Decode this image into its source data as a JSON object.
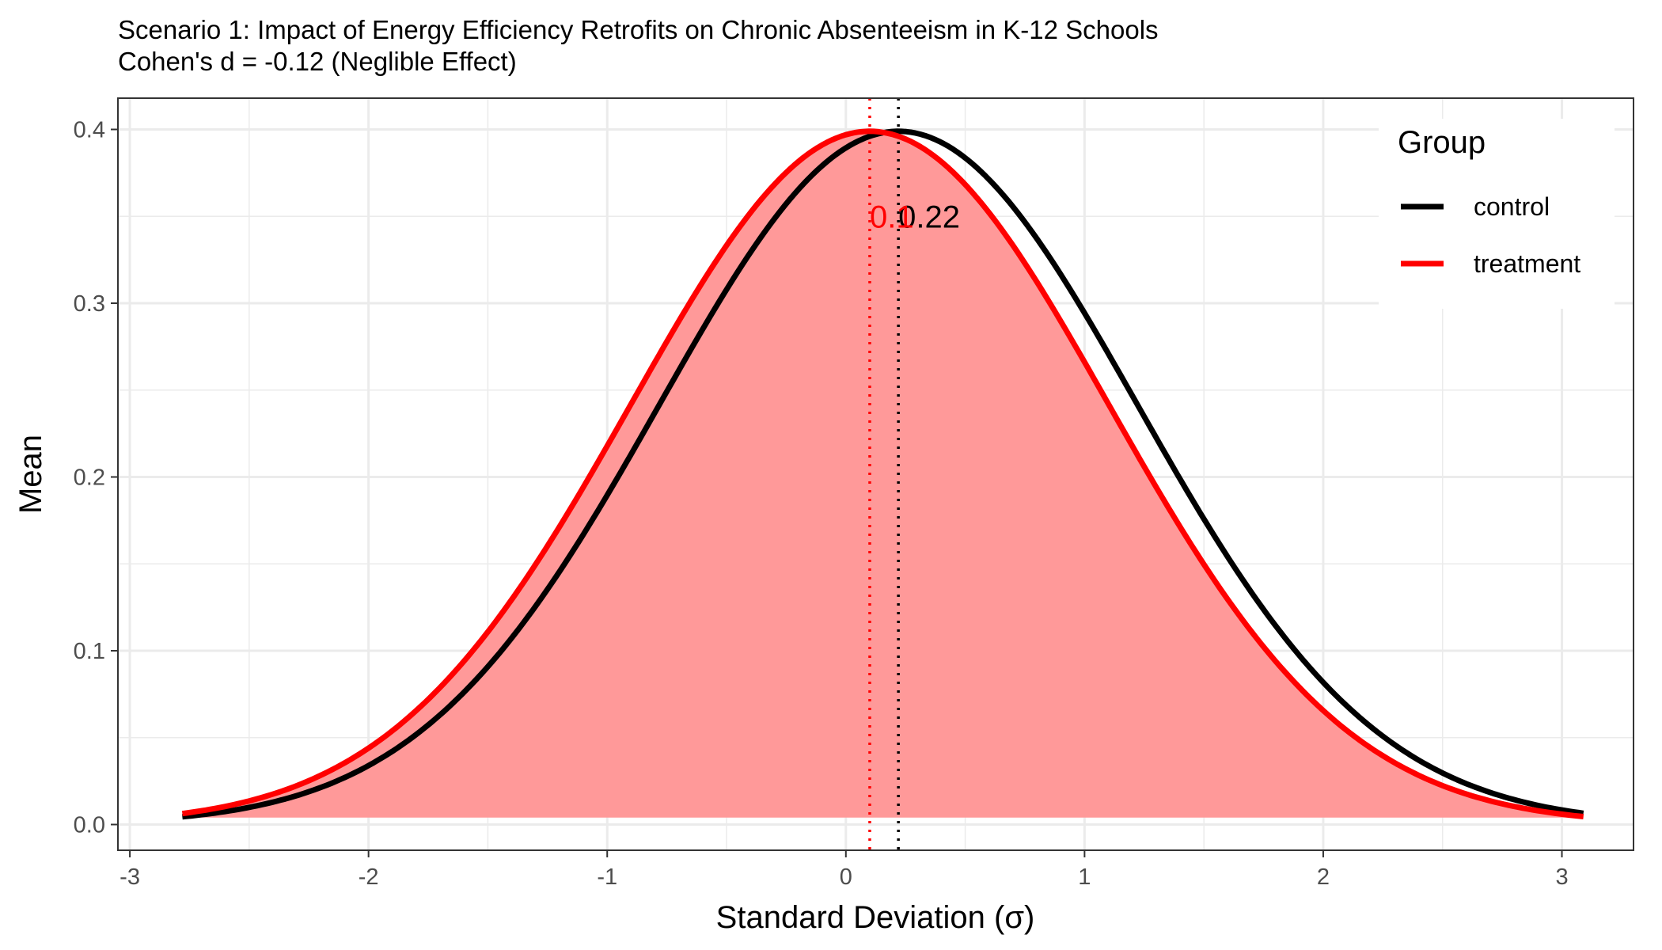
{
  "chart_data": {
    "type": "line",
    "title": "Scenario 1: Impact of Energy Efficiency Retrofits on Chronic Absenteeism in K-12 Schools",
    "subtitle": "Cohen's d = -0.12 (Neglible Effect)",
    "xlabel": "Standard Deviation (σ)",
    "ylabel": "Mean",
    "xlim": [
      -3.05,
      3.3
    ],
    "ylim": [
      -0.0148,
      0.418
    ],
    "x_ticks": [
      -3,
      -2,
      -1,
      0,
      1,
      2,
      3
    ],
    "x_tick_labels": [
      "-3",
      "-2",
      "-1",
      "0",
      "1",
      "2",
      "3"
    ],
    "y_ticks": [
      0.0,
      0.1,
      0.2,
      0.3,
      0.4
    ],
    "y_tick_labels": [
      "0.0",
      "0.1",
      "0.2",
      "0.3",
      "0.4"
    ],
    "grid": true,
    "x_range": [
      -2.78,
      3.09
    ],
    "fill_baseline": 0.004,
    "legend": {
      "title": "Group",
      "position": "top-right"
    },
    "series": [
      {
        "name": "control",
        "distribution": "normal",
        "mean": 0.22,
        "sd": 1,
        "color": "#000000"
      },
      {
        "name": "treatment",
        "distribution": "normal",
        "mean": 0.1,
        "sd": 1,
        "color": "#ff0000",
        "fill_color": "#ff9999"
      }
    ],
    "annotations": [
      {
        "series": "control",
        "x": 0.22,
        "label": "0.22",
        "color": "#000000",
        "line_style": "dotted"
      },
      {
        "series": "treatment",
        "x": 0.1,
        "label": "0.1",
        "color": "#ff0000",
        "line_style": "dotted"
      }
    ]
  }
}
